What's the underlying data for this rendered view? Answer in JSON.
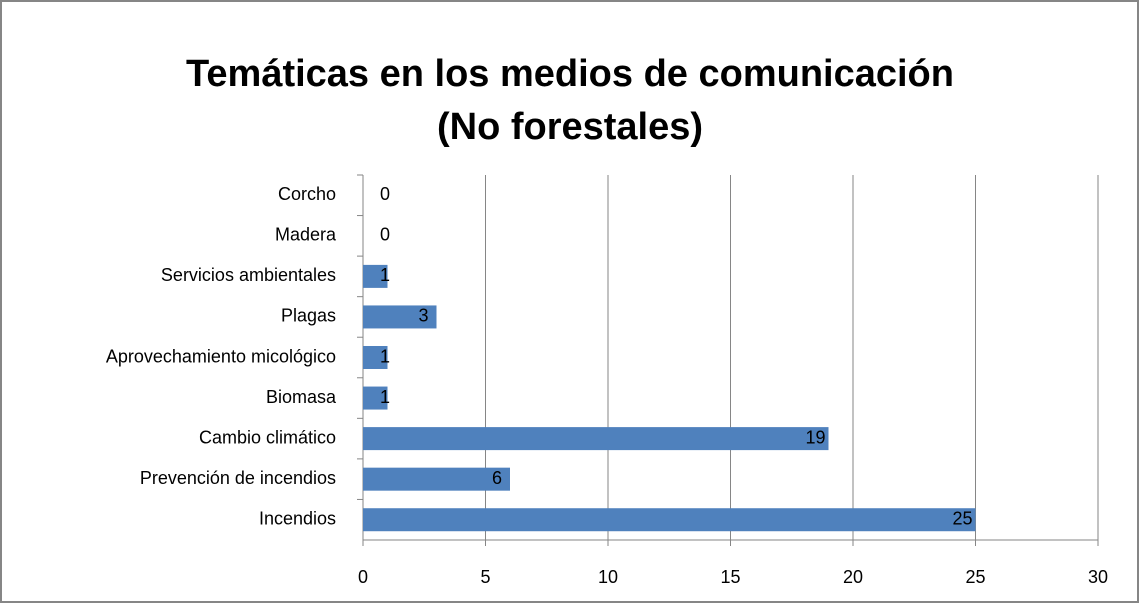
{
  "chart_data": {
    "type": "bar",
    "orientation": "horizontal",
    "title": [
      "Temáticas en los medios de comunicación",
      "(No forestales)"
    ],
    "categories": [
      "Corcho",
      "Madera",
      "Servicios ambientales",
      "Plagas",
      "Aprovechamiento micológico",
      "Biomasa",
      "Cambio climático",
      "Prevención de incendios",
      "Incendios"
    ],
    "values": [
      0,
      0,
      1,
      3,
      1,
      1,
      19,
      6,
      25
    ],
    "color": "#4f81bd",
    "xlim": [
      0,
      30
    ],
    "xticks": [
      0,
      5,
      10,
      15,
      20,
      25,
      30
    ],
    "grid": true
  }
}
